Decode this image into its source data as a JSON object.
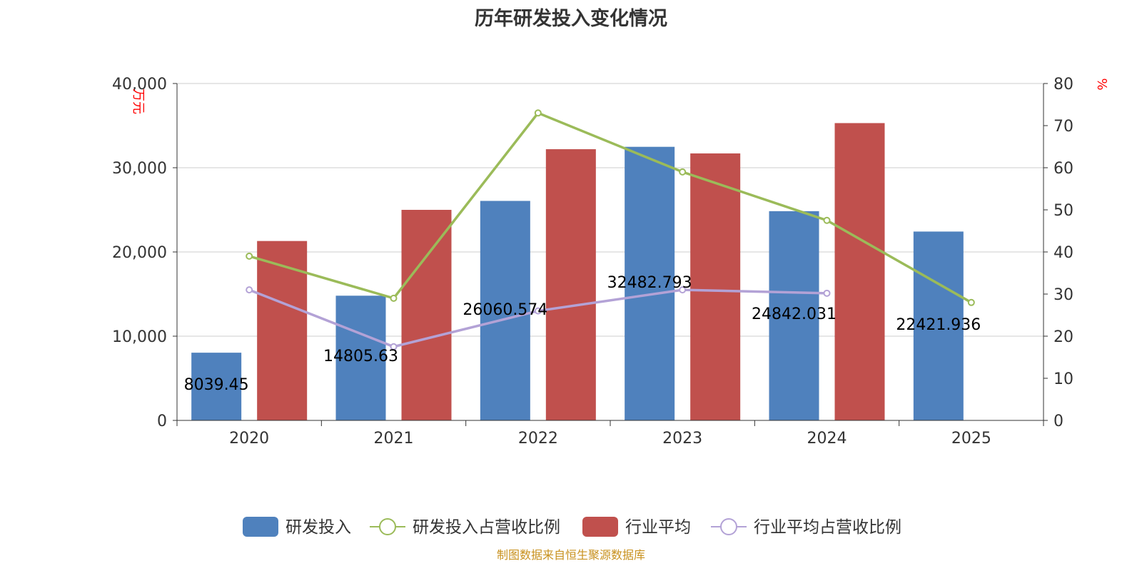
{
  "title": "历年研发投入变化情况",
  "source": "制图数据来自恒生聚源数据库",
  "colors": {
    "rd_bar": "#4f81bd",
    "industry_bar": "#c0504d",
    "rd_ratio_line": "#9bbb59",
    "industry_ratio_line": "#b3a2d6",
    "unit_label": "#ff0000",
    "source_text": "#c8911e",
    "axis_text": "#333333",
    "grid": "#cccccc"
  },
  "chart_data": {
    "type": "bar",
    "categories": [
      "2020",
      "2021",
      "2022",
      "2023",
      "2024",
      "2025"
    ],
    "y_left": {
      "unit": "万元",
      "min": 0,
      "max": 40000,
      "ticks": [
        "0",
        "10,000",
        "20,000",
        "30,000",
        "40,000"
      ]
    },
    "y_right": {
      "unit": "%",
      "min": 0,
      "max": 80,
      "ticks": [
        "0",
        "10",
        "20",
        "30",
        "40",
        "50",
        "60",
        "70",
        "80"
      ]
    },
    "grid": true,
    "legend_position": "bottom",
    "series": [
      {
        "name": "研发投入",
        "type": "bar",
        "axis": "left",
        "color_key": "rd_bar",
        "values": [
          8039.45,
          14805.63,
          26060.574,
          32482.793,
          24842.031,
          22421.936
        ],
        "labels": [
          "8039.45",
          "14805.63",
          "26060.574",
          "32482.793",
          "24842.031",
          "22421.936"
        ]
      },
      {
        "name": "研发投入占营收比例",
        "type": "line",
        "axis": "right",
        "color_key": "rd_ratio_line",
        "values": [
          39.0,
          29.0,
          73.0,
          59.0,
          47.5,
          28.0
        ]
      },
      {
        "name": "行业平均",
        "type": "bar",
        "axis": "left",
        "color_key": "industry_bar",
        "values": [
          21300,
          25000,
          32200,
          31700,
          35300,
          null
        ]
      },
      {
        "name": "行业平均占营收比例",
        "type": "line",
        "axis": "right",
        "color_key": "industry_ratio_line",
        "values": [
          31.0,
          17.5,
          26.0,
          31.0,
          30.2,
          null
        ]
      }
    ]
  }
}
